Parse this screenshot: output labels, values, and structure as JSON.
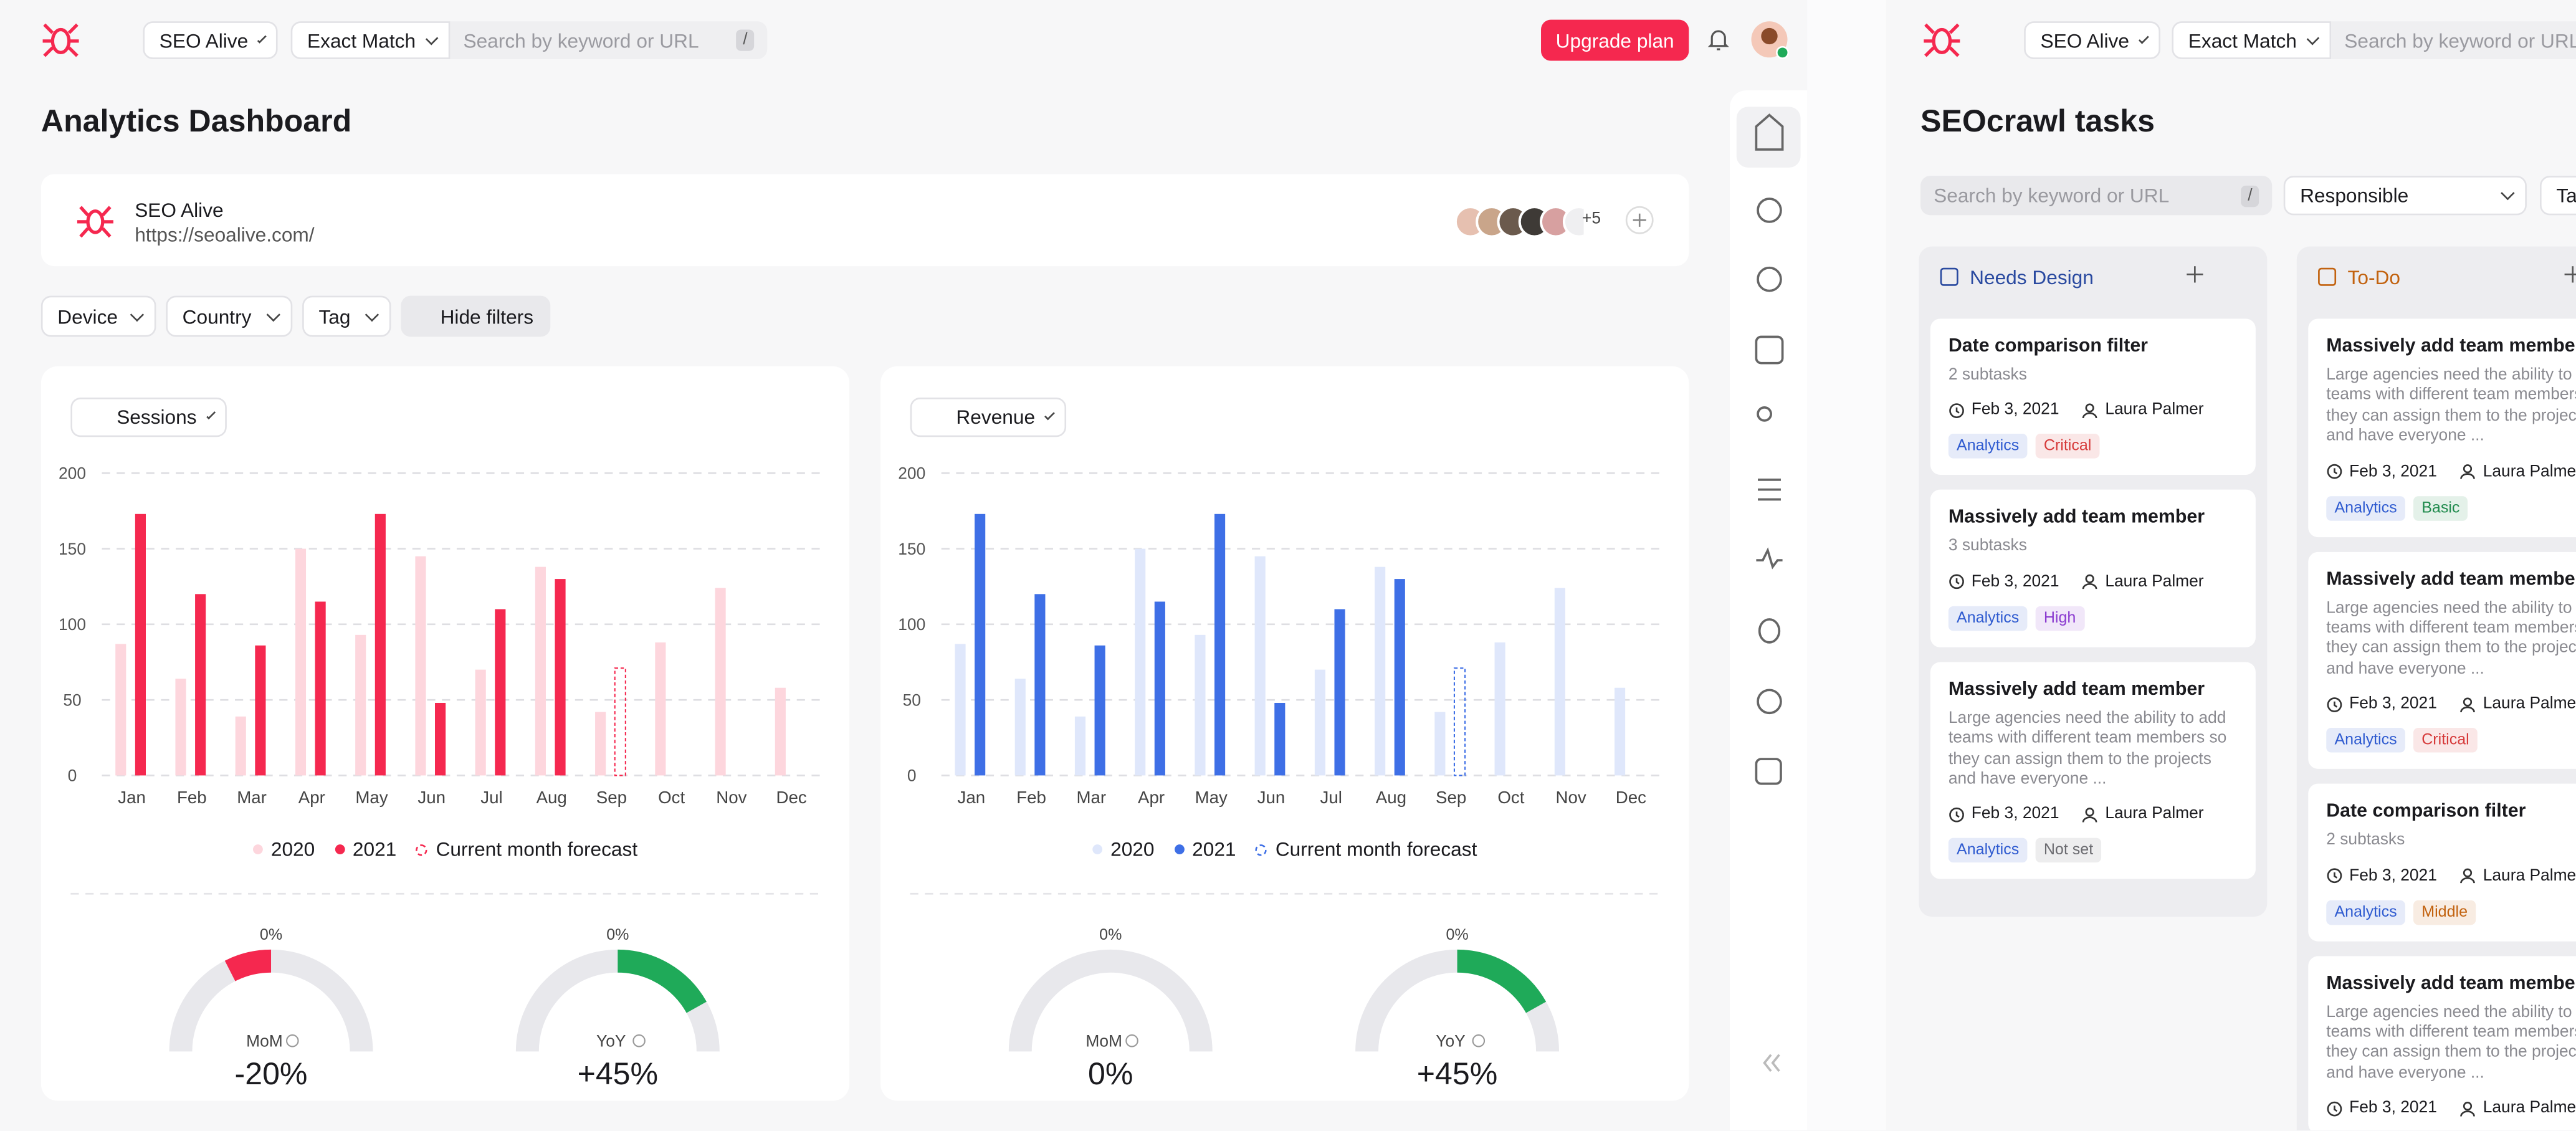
{
  "topbar": {
    "project": "SEO Alive",
    "match": "Exact Match",
    "search_placeholder": "Search by keyword or URL",
    "shortcut": "/",
    "upgrade": "Upgrade plan"
  },
  "page_title": "Analytics Dashboard",
  "site": {
    "name": "SEO Alive",
    "url": "https://seoalive.com/",
    "more_members": "+5"
  },
  "filters": [
    "Device",
    "Country",
    "Tag",
    "Hide filters"
  ],
  "charts": [
    {
      "type": "bar",
      "selector": "Sessions",
      "categories": [
        "Jan",
        "Feb",
        "Mar",
        "Apr",
        "May",
        "Jun",
        "Jul",
        "Aug",
        "Sep",
        "Oct",
        "Nov",
        "Dec"
      ],
      "series": [
        {
          "name": "2020",
          "color": "#fdd6dd",
          "values": [
            87,
            64,
            39,
            150,
            93,
            145,
            70,
            138,
            42,
            88,
            124,
            58
          ]
        },
        {
          "name": "2021",
          "color": "#f5284f",
          "values": [
            173,
            120,
            86,
            115,
            173,
            48,
            110,
            130,
            null,
            null,
            null,
            null
          ]
        },
        {
          "name": "Current month forecast",
          "color": "#f5284f",
          "values": [
            null,
            null,
            null,
            null,
            null,
            null,
            null,
            null,
            71,
            null,
            null,
            null
          ]
        }
      ],
      "ylim": [
        0,
        200
      ],
      "yticks": [
        0,
        50,
        100,
        150,
        200
      ],
      "grid": true,
      "gauges": [
        {
          "top": "0%",
          "label": "MoM",
          "value": -20,
          "value_label": "-20%",
          "color": "#f5284f"
        },
        {
          "top": "0%",
          "label": "YoY",
          "value": 45,
          "value_label": "+45%",
          "color": "#1faa59"
        }
      ]
    },
    {
      "type": "bar",
      "selector": "Revenue",
      "categories": [
        "Jan",
        "Feb",
        "Mar",
        "Apr",
        "May",
        "Jun",
        "Jul",
        "Aug",
        "Sep",
        "Oct",
        "Nov",
        "Dec"
      ],
      "series": [
        {
          "name": "2020",
          "color": "#dfe7fb",
          "values": [
            87,
            64,
            39,
            150,
            93,
            145,
            70,
            138,
            42,
            88,
            124,
            58
          ]
        },
        {
          "name": "2021",
          "color": "#3e6fe6",
          "values": [
            173,
            120,
            86,
            115,
            173,
            48,
            110,
            130,
            null,
            null,
            null,
            null
          ]
        },
        {
          "name": "Current month forecast",
          "color": "#3e6fe6",
          "values": [
            null,
            null,
            null,
            null,
            null,
            null,
            null,
            null,
            71,
            null,
            null,
            null
          ]
        }
      ],
      "ylim": [
        0,
        200
      ],
      "yticks": [
        0,
        50,
        100,
        150,
        200
      ],
      "grid": true,
      "gauges": [
        {
          "top": "0%",
          "label": "MoM",
          "value": 0,
          "value_label": "0%",
          "color": "#f5284f"
        },
        {
          "top": "0%",
          "label": "YoY",
          "value": 45,
          "value_label": "+45%",
          "color": "#1faa59"
        }
      ]
    }
  ],
  "tasks": {
    "title": "SEOcrawl tasks",
    "responsible": "Responsible",
    "tag_filter": "Tag",
    "columns": [
      {
        "name": "Needs Design",
        "color": "#2a4aa0",
        "cards": [
          {
            "title": "Date comparison filter",
            "subtitle": "2 subtasks",
            "date": "Feb 3, 2021",
            "assignee": "Laura Palmer",
            "tags": [
              {
                "text": "Analytics",
                "color": "#2f5bd0"
              },
              {
                "text": "Critical",
                "color": "#d63a3a"
              }
            ]
          },
          {
            "title": "Massively add team member",
            "subtitle": "3 subtasks",
            "date": "Feb 3, 2021",
            "assignee": "Laura Palmer",
            "tags": [
              {
                "text": "Analytics",
                "color": "#2f5bd0"
              },
              {
                "text": "High",
                "color": "#8b3bd0"
              }
            ]
          },
          {
            "title": "Massively add team member",
            "description": "Large agencies need the ability to add teams with different team members so they can assign them to the projects and have everyone ...",
            "date": "Feb 3, 2021",
            "assignee": "Laura Palmer",
            "tags": [
              {
                "text": "Analytics",
                "color": "#2f5bd0"
              },
              {
                "text": "Not set",
                "color": "#6b6b70"
              }
            ]
          }
        ]
      },
      {
        "name": "To-Do",
        "color": "#c2620f",
        "cards": [
          {
            "title": "Massively add team member",
            "description": "Large agencies need the ability to add teams with different team members so they can assign them to the projects and have everyone ...",
            "date": "Feb 3, 2021",
            "assignee": "Laura Palmer",
            "tags": [
              {
                "text": "Analytics",
                "color": "#2f5bd0"
              },
              {
                "text": "Basic",
                "color": "#1f8a4c"
              }
            ]
          },
          {
            "title": "Massively add team member",
            "description": "Large agencies need the ability to add teams with different team members so they can assign them to the projects and have everyone ...",
            "date": "Feb 3, 2021",
            "assignee": "Laura Palmer",
            "tags": [
              {
                "text": "Analytics",
                "color": "#2f5bd0"
              },
              {
                "text": "Critical",
                "color": "#d63a3a"
              }
            ]
          },
          {
            "title": "Date comparison filter",
            "subtitle": "2 subtasks",
            "date": "Feb 3, 2021",
            "assignee": "Laura Palmer",
            "tags": [
              {
                "text": "Analytics",
                "color": "#2f5bd0"
              },
              {
                "text": "Middle",
                "color": "#c2620f"
              }
            ]
          },
          {
            "title": "Massively add team member",
            "description": "Large agencies need the ability to add teams with different team members so they can assign them to the projects and have everyone ...",
            "date": "Feb 3, 2021",
            "assignee": "Laura Palmer",
            "tags": []
          }
        ]
      }
    ]
  }
}
